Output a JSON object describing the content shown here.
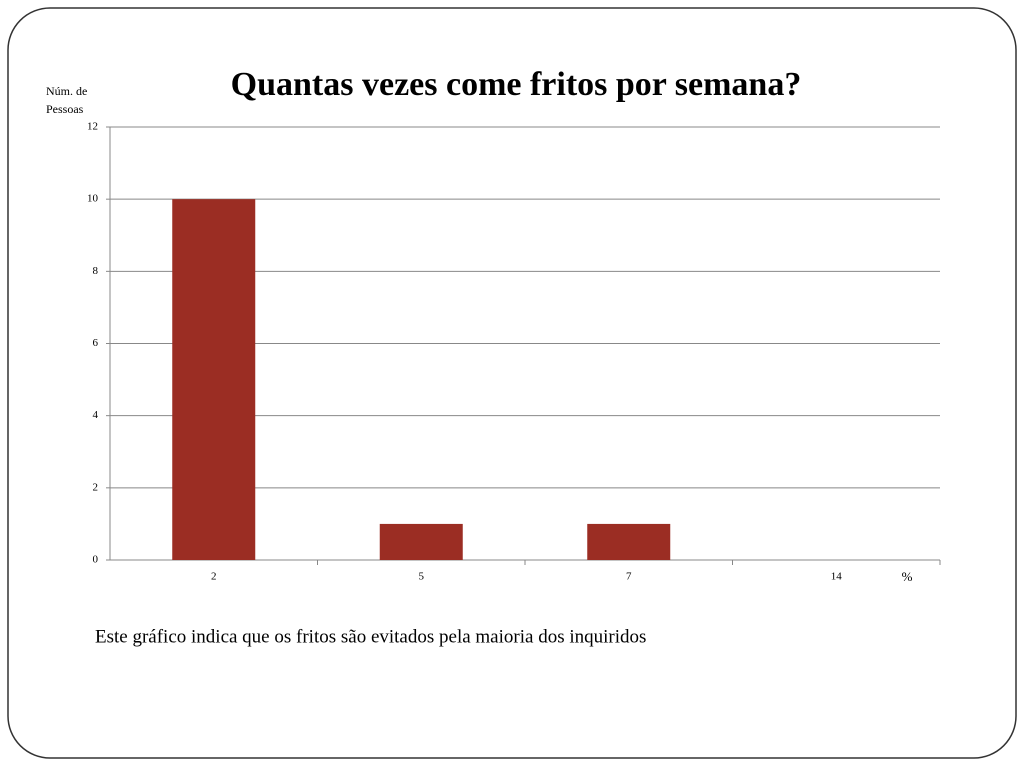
{
  "chart_data": {
    "type": "bar",
    "title": "Quantas vezes come fritos por semana?",
    "y_label": "Núm. de Pessoas",
    "x_label": "%",
    "categories": [
      "2",
      "5",
      "7",
      "14"
    ],
    "values": [
      10,
      1,
      1,
      0
    ],
    "color": "#9b2d23",
    "ylim": [
      0,
      12
    ],
    "yticks": [
      0,
      2,
      4,
      6,
      8,
      10,
      12
    ],
    "grid": true,
    "caption": "Este gráfico indica que os fritos são evitados pela maioria dos inquiridos"
  }
}
